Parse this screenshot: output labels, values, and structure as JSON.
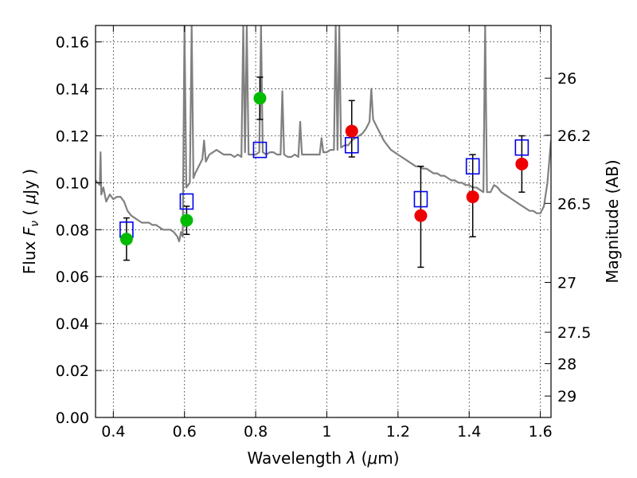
{
  "chart_data": {
    "type": "scatter",
    "xlabel": "Wavelength  λ (μm)",
    "ylabel": "Flux  F_ν  ( μJy )",
    "ylabel_parts": {
      "pre": "Flux ",
      "sym": "F",
      "sub": "ν",
      "post": "  ( ",
      "mu": "μ",
      "unit": "Jy )"
    },
    "xlabel_parts": {
      "pre": "Wavelength  ",
      "lam": "λ",
      "open": " (",
      "mu": "μ",
      "unit": "m)"
    },
    "y2label": "Magnitude (AB)",
    "xlim": [
      0.35,
      1.63
    ],
    "ylim": [
      0.0,
      0.167
    ],
    "grid": true,
    "x_ticks": [
      {
        "value": 0.4,
        "label": "0.4"
      },
      {
        "value": 0.6,
        "label": "0.6"
      },
      {
        "value": 0.8,
        "label": "0.8"
      },
      {
        "value": 1.0,
        "label": "1"
      },
      {
        "value": 1.2,
        "label": "1.2"
      },
      {
        "value": 1.4,
        "label": "1.4"
      },
      {
        "value": 1.6,
        "label": "1.6"
      }
    ],
    "y_ticks": [
      {
        "value": 0.0,
        "label": "0.00"
      },
      {
        "value": 0.02,
        "label": "0.02"
      },
      {
        "value": 0.04,
        "label": "0.04"
      },
      {
        "value": 0.06,
        "label": "0.06"
      },
      {
        "value": 0.08,
        "label": "0.08"
      },
      {
        "value": 0.1,
        "label": "0.10"
      },
      {
        "value": 0.12,
        "label": "0.12"
      },
      {
        "value": 0.14,
        "label": "0.14"
      },
      {
        "value": 0.16,
        "label": "0.16"
      }
    ],
    "y2_ticks": [
      {
        "mag": 26.0,
        "label": "26"
      },
      {
        "mag": 26.2,
        "label": "26.2"
      },
      {
        "mag": 26.5,
        "label": "26.5"
      },
      {
        "mag": 27.0,
        "label": "27"
      },
      {
        "mag": 27.5,
        "label": "27.5"
      },
      {
        "mag": 28.0,
        "label": "28"
      },
      {
        "mag": 29.0,
        "label": "29"
      }
    ],
    "series": [
      {
        "kind": "line",
        "color": "#808080",
        "points": [
          [
            0.35,
            0.101
          ],
          [
            0.362,
            0.099
          ],
          [
            0.364,
            0.113
          ],
          [
            0.366,
            0.095
          ],
          [
            0.372,
            0.098
          ],
          [
            0.38,
            0.092
          ],
          [
            0.39,
            0.095
          ],
          [
            0.4,
            0.093
          ],
          [
            0.41,
            0.094
          ],
          [
            0.42,
            0.094
          ],
          [
            0.43,
            0.092
          ],
          [
            0.44,
            0.088
          ],
          [
            0.45,
            0.086
          ],
          [
            0.46,
            0.085
          ],
          [
            0.47,
            0.084
          ],
          [
            0.48,
            0.083
          ],
          [
            0.49,
            0.083
          ],
          [
            0.5,
            0.083
          ],
          [
            0.51,
            0.082
          ],
          [
            0.52,
            0.082
          ],
          [
            0.53,
            0.081
          ],
          [
            0.54,
            0.08
          ],
          [
            0.55,
            0.08
          ],
          [
            0.56,
            0.08
          ],
          [
            0.57,
            0.079
          ],
          [
            0.58,
            0.077
          ],
          [
            0.585,
            0.075
          ],
          [
            0.59,
            0.079
          ],
          [
            0.595,
            0.077
          ],
          [
            0.6,
            0.167
          ],
          [
            0.605,
            0.098
          ],
          [
            0.61,
            0.099
          ],
          [
            0.615,
            0.1
          ],
          [
            0.62,
            0.167
          ],
          [
            0.625,
            0.102
          ],
          [
            0.63,
            0.104
          ],
          [
            0.64,
            0.107
          ],
          [
            0.65,
            0.11
          ],
          [
            0.655,
            0.118
          ],
          [
            0.66,
            0.109
          ],
          [
            0.67,
            0.112
          ],
          [
            0.68,
            0.113
          ],
          [
            0.69,
            0.114
          ],
          [
            0.7,
            0.113
          ],
          [
            0.71,
            0.112
          ],
          [
            0.72,
            0.112
          ],
          [
            0.73,
            0.112
          ],
          [
            0.74,
            0.111
          ],
          [
            0.75,
            0.112
          ],
          [
            0.76,
            0.111
          ],
          [
            0.765,
            0.167
          ],
          [
            0.77,
            0.113
          ],
          [
            0.775,
            0.167
          ],
          [
            0.78,
            0.112
          ],
          [
            0.79,
            0.112
          ],
          [
            0.8,
            0.112
          ],
          [
            0.81,
            0.113
          ],
          [
            0.815,
            0.167
          ],
          [
            0.82,
            0.113
          ],
          [
            0.83,
            0.112
          ],
          [
            0.84,
            0.113
          ],
          [
            0.85,
            0.113
          ],
          [
            0.86,
            0.112
          ],
          [
            0.87,
            0.112
          ],
          [
            0.875,
            0.139
          ],
          [
            0.88,
            0.112
          ],
          [
            0.89,
            0.111
          ],
          [
            0.9,
            0.111
          ],
          [
            0.91,
            0.112
          ],
          [
            0.92,
            0.111
          ],
          [
            0.925,
            0.126
          ],
          [
            0.93,
            0.112
          ],
          [
            0.94,
            0.112
          ],
          [
            0.95,
            0.112
          ],
          [
            0.96,
            0.112
          ],
          [
            0.97,
            0.112
          ],
          [
            0.98,
            0.112
          ],
          [
            0.985,
            0.119
          ],
          [
            0.99,
            0.113
          ],
          [
            1.0,
            0.113
          ],
          [
            1.01,
            0.114
          ],
          [
            1.02,
            0.114
          ],
          [
            1.025,
            0.167
          ],
          [
            1.03,
            0.114
          ],
          [
            1.035,
            0.167
          ],
          [
            1.04,
            0.115
          ],
          [
            1.05,
            0.116
          ],
          [
            1.06,
            0.116
          ],
          [
            1.07,
            0.118
          ],
          [
            1.08,
            0.119
          ],
          [
            1.09,
            0.12
          ],
          [
            1.1,
            0.121
          ],
          [
            1.11,
            0.123
          ],
          [
            1.12,
            0.126
          ],
          [
            1.125,
            0.14
          ],
          [
            1.13,
            0.127
          ],
          [
            1.14,
            0.124
          ],
          [
            1.15,
            0.121
          ],
          [
            1.16,
            0.118
          ],
          [
            1.17,
            0.116
          ],
          [
            1.18,
            0.114
          ],
          [
            1.19,
            0.113
          ],
          [
            1.2,
            0.112
          ],
          [
            1.21,
            0.111
          ],
          [
            1.22,
            0.11
          ],
          [
            1.23,
            0.109
          ],
          [
            1.24,
            0.108
          ],
          [
            1.25,
            0.107
          ],
          [
            1.26,
            0.107
          ],
          [
            1.27,
            0.106
          ],
          [
            1.28,
            0.106
          ],
          [
            1.29,
            0.105
          ],
          [
            1.3,
            0.104
          ],
          [
            1.31,
            0.104
          ],
          [
            1.32,
            0.103
          ],
          [
            1.33,
            0.103
          ],
          [
            1.34,
            0.102
          ],
          [
            1.35,
            0.101
          ],
          [
            1.36,
            0.101
          ],
          [
            1.37,
            0.1
          ],
          [
            1.38,
            0.1
          ],
          [
            1.39,
            0.099
          ],
          [
            1.4,
            0.099
          ],
          [
            1.41,
            0.098
          ],
          [
            1.42,
            0.098
          ],
          [
            1.43,
            0.097
          ],
          [
            1.44,
            0.096
          ],
          [
            1.445,
            0.167
          ],
          [
            1.45,
            0.096
          ],
          [
            1.46,
            0.096
          ],
          [
            1.47,
            0.099
          ],
          [
            1.48,
            0.098
          ],
          [
            1.49,
            0.096
          ],
          [
            1.5,
            0.095
          ],
          [
            1.51,
            0.094
          ],
          [
            1.52,
            0.093
          ],
          [
            1.53,
            0.092
          ],
          [
            1.54,
            0.091
          ],
          [
            1.55,
            0.09
          ],
          [
            1.56,
            0.089
          ],
          [
            1.57,
            0.088
          ],
          [
            1.58,
            0.088
          ],
          [
            1.59,
            0.087
          ],
          [
            1.6,
            0.087
          ],
          [
            1.61,
            0.09
          ],
          [
            1.62,
            0.1
          ],
          [
            1.63,
            0.118
          ]
        ]
      },
      {
        "kind": "squares",
        "color": "#0000ee",
        "points": [
          [
            0.437,
            0.08
          ],
          [
            0.606,
            0.092
          ],
          [
            0.812,
            0.114
          ],
          [
            1.07,
            0.116
          ],
          [
            1.264,
            0.093
          ],
          [
            1.41,
            0.107
          ],
          [
            1.548,
            0.115
          ]
        ]
      },
      {
        "kind": "circles",
        "color": "#00bb00",
        "points": [
          {
            "x": 0.437,
            "y": 0.076,
            "err": [
              0.067,
              0.085
            ]
          },
          {
            "x": 0.606,
            "y": 0.084,
            "err": [
              0.078,
              0.09
            ]
          },
          {
            "x": 0.812,
            "y": 0.136,
            "err": [
              0.127,
              0.145
            ]
          }
        ]
      },
      {
        "kind": "circles",
        "color": "#ee0000",
        "points": [
          {
            "x": 1.07,
            "y": 0.122,
            "err": [
              0.111,
              0.135
            ]
          },
          {
            "x": 1.264,
            "y": 0.086,
            "err": [
              0.064,
              0.107
            ]
          },
          {
            "x": 1.41,
            "y": 0.094,
            "err": [
              0.077,
              0.112
            ]
          },
          {
            "x": 1.548,
            "y": 0.108,
            "err": [
              0.096,
              0.12
            ]
          }
        ]
      }
    ]
  }
}
